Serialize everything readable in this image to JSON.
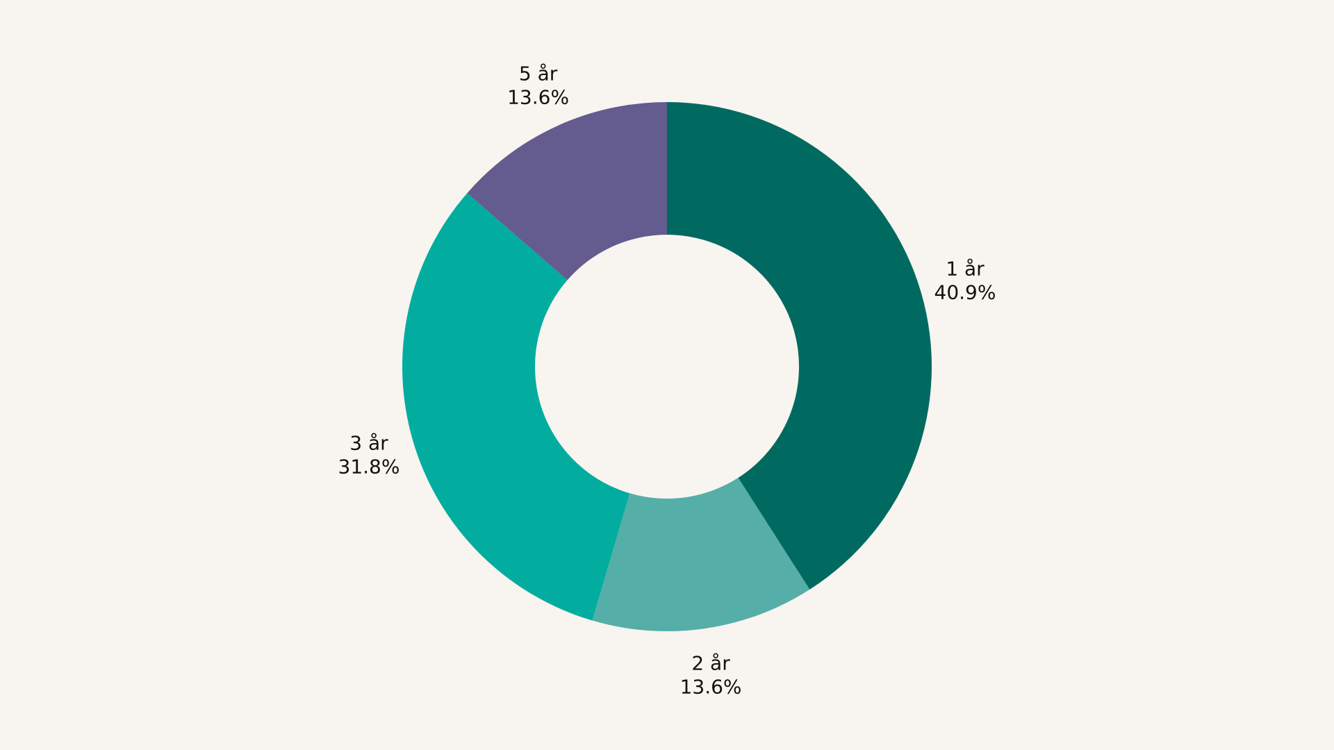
{
  "chart_data": {
    "type": "pie",
    "donut": true,
    "title": "",
    "legend": "none",
    "slices": [
      {
        "label": "1 år",
        "percent_label": "40.9%",
        "value": 40.9,
        "color": "#006a60"
      },
      {
        "label": "2 år",
        "percent_label": "13.6%",
        "value": 13.6,
        "color": "#55aea8"
      },
      {
        "label": "3 år",
        "percent_label": "31.8%",
        "value": 31.8,
        "color": "#02ad9f"
      },
      {
        "label": "5 år",
        "percent_label": "13.6%",
        "value": 13.6,
        "color": "#645b8f"
      }
    ]
  },
  "colors": {
    "background": "#f8f4ef",
    "label_text": "#111111"
  }
}
